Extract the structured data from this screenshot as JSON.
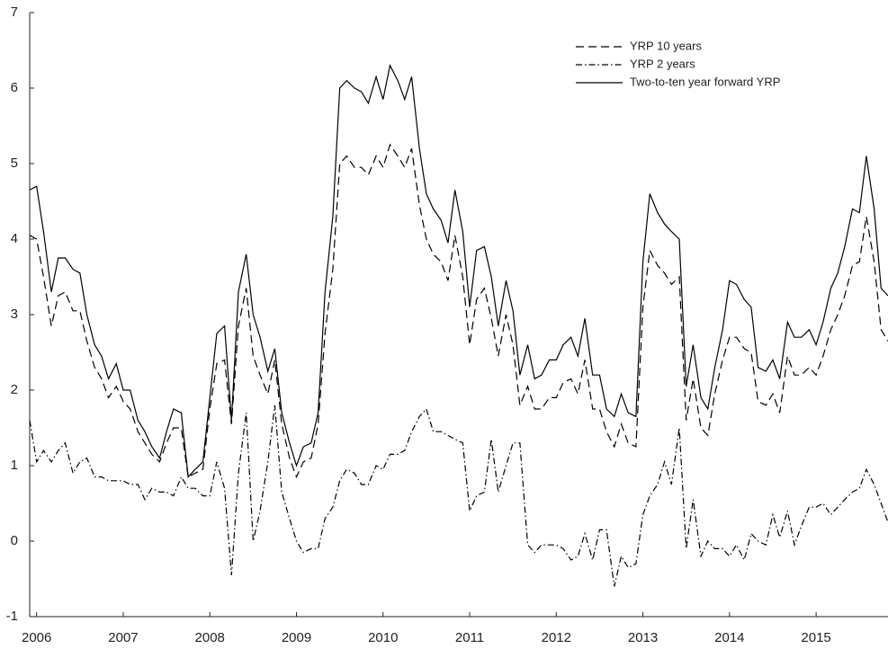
{
  "chart_data": {
    "type": "line",
    "x": [
      2005.92,
      2006.0,
      2006.08,
      2006.17,
      2006.25,
      2006.33,
      2006.42,
      2006.5,
      2006.58,
      2006.67,
      2006.75,
      2006.83,
      2006.92,
      2007.0,
      2007.08,
      2007.17,
      2007.25,
      2007.33,
      2007.42,
      2007.5,
      2007.58,
      2007.67,
      2007.75,
      2007.83,
      2007.92,
      2008.0,
      2008.08,
      2008.17,
      2008.25,
      2008.33,
      2008.42,
      2008.5,
      2008.58,
      2008.67,
      2008.75,
      2008.83,
      2008.92,
      2009.0,
      2009.08,
      2009.17,
      2009.25,
      2009.33,
      2009.42,
      2009.5,
      2009.58,
      2009.67,
      2009.75,
      2009.83,
      2009.92,
      2010.0,
      2010.08,
      2010.17,
      2010.25,
      2010.33,
      2010.42,
      2010.5,
      2010.58,
      2010.67,
      2010.75,
      2010.83,
      2010.92,
      2011.0,
      2011.08,
      2011.17,
      2011.25,
      2011.33,
      2011.42,
      2011.5,
      2011.58,
      2011.67,
      2011.75,
      2011.83,
      2011.92,
      2012.0,
      2012.08,
      2012.17,
      2012.25,
      2012.33,
      2012.42,
      2012.5,
      2012.58,
      2012.67,
      2012.75,
      2012.83,
      2012.92,
      2013.0,
      2013.08,
      2013.17,
      2013.25,
      2013.33,
      2013.42,
      2013.5,
      2013.58,
      2013.67,
      2013.75,
      2013.83,
      2013.92,
      2014.0,
      2014.08,
      2014.17,
      2014.25,
      2014.33,
      2014.42,
      2014.5,
      2014.58,
      2014.67,
      2014.75,
      2014.83,
      2014.92,
      2015.0,
      2015.08,
      2015.17,
      2015.25,
      2015.33,
      2015.42,
      2015.5,
      2015.58,
      2015.67,
      2015.75,
      2015.83
    ],
    "series": [
      {
        "name": "YRP 10 years",
        "color": "#000000",
        "style": "dashed",
        "values": [
          4.05,
          4.0,
          3.5,
          2.85,
          3.25,
          3.3,
          3.05,
          3.05,
          2.65,
          2.3,
          2.15,
          1.9,
          2.05,
          1.85,
          1.75,
          1.45,
          1.3,
          1.15,
          1.05,
          1.3,
          1.5,
          1.5,
          0.85,
          0.9,
          0.95,
          1.75,
          2.35,
          2.4,
          1.55,
          2.85,
          3.35,
          2.45,
          2.2,
          1.95,
          2.4,
          1.55,
          1.1,
          0.85,
          1.05,
          1.1,
          1.55,
          2.75,
          3.6,
          5.0,
          5.1,
          4.95,
          4.95,
          4.85,
          5.1,
          4.95,
          5.25,
          5.1,
          4.95,
          5.2,
          4.45,
          4.0,
          3.8,
          3.7,
          3.45,
          4.05,
          3.5,
          2.6,
          3.2,
          3.35,
          2.95,
          2.45,
          3.0,
          2.6,
          1.8,
          2.05,
          1.75,
          1.75,
          1.9,
          1.9,
          2.1,
          2.15,
          1.95,
          2.4,
          1.75,
          1.75,
          1.45,
          1.25,
          1.55,
          1.3,
          1.25,
          3.1,
          3.85,
          3.65,
          3.55,
          3.4,
          3.5,
          1.6,
          2.15,
          1.5,
          1.4,
          1.95,
          2.4,
          2.7,
          2.7,
          2.55,
          2.5,
          1.85,
          1.8,
          1.95,
          1.7,
          2.45,
          2.2,
          2.2,
          2.3,
          2.2,
          2.45,
          2.8,
          3.0,
          3.25,
          3.65,
          3.7,
          4.3,
          3.7,
          2.8,
          2.65
        ]
      },
      {
        "name": "YRP 2 years",
        "color": "#000000",
        "style": "dashdot",
        "values": [
          1.6,
          1.05,
          1.2,
          1.05,
          1.2,
          1.3,
          0.9,
          1.05,
          1.1,
          0.85,
          0.85,
          0.8,
          0.8,
          0.8,
          0.75,
          0.75,
          0.55,
          0.7,
          0.65,
          0.65,
          0.6,
          0.85,
          0.7,
          0.7,
          0.6,
          0.6,
          1.05,
          0.7,
          -0.45,
          0.9,
          1.7,
          0.0,
          0.4,
          1.05,
          1.8,
          0.65,
          0.3,
          0.0,
          -0.15,
          -0.1,
          -0.1,
          0.3,
          0.45,
          0.8,
          0.95,
          0.9,
          0.75,
          0.75,
          1.0,
          0.95,
          1.15,
          1.15,
          1.2,
          1.45,
          1.65,
          1.75,
          1.45,
          1.45,
          1.4,
          1.35,
          1.3,
          0.4,
          0.6,
          0.65,
          1.35,
          0.65,
          1.0,
          1.3,
          1.3,
          -0.05,
          -0.15,
          -0.05,
          -0.05,
          -0.05,
          -0.1,
          -0.25,
          -0.2,
          0.1,
          -0.25,
          0.15,
          0.15,
          -0.6,
          -0.2,
          -0.35,
          -0.3,
          0.35,
          0.6,
          0.75,
          1.05,
          0.75,
          1.5,
          -0.1,
          0.55,
          -0.2,
          0.0,
          -0.1,
          -0.1,
          -0.2,
          -0.05,
          -0.25,
          0.1,
          0.0,
          -0.05,
          0.35,
          0.05,
          0.4,
          -0.05,
          0.2,
          0.45,
          0.45,
          0.5,
          0.35,
          0.45,
          0.55,
          0.65,
          0.7,
          0.95,
          0.75,
          0.5,
          0.25
        ]
      },
      {
        "name": "Two-to-ten year forward YRP",
        "color": "#000000",
        "style": "solid",
        "values": [
          4.65,
          4.7,
          4.1,
          3.3,
          3.75,
          3.75,
          3.6,
          3.55,
          3.0,
          2.6,
          2.45,
          2.15,
          2.35,
          2.0,
          2.0,
          1.6,
          1.45,
          1.25,
          1.1,
          1.45,
          1.75,
          1.7,
          0.85,
          0.95,
          1.05,
          1.9,
          2.75,
          2.85,
          1.6,
          3.3,
          3.8,
          3.0,
          2.7,
          2.25,
          2.55,
          1.7,
          1.3,
          1.0,
          1.25,
          1.3,
          1.7,
          3.3,
          4.3,
          6.0,
          6.1,
          6.0,
          5.95,
          5.8,
          6.15,
          5.85,
          6.3,
          6.1,
          5.85,
          6.15,
          5.2,
          4.6,
          4.4,
          4.25,
          3.95,
          4.65,
          4.1,
          3.1,
          3.85,
          3.9,
          3.5,
          2.85,
          3.45,
          3.05,
          2.2,
          2.6,
          2.15,
          2.2,
          2.4,
          2.4,
          2.6,
          2.7,
          2.45,
          2.95,
          2.2,
          2.2,
          1.75,
          1.65,
          1.95,
          1.7,
          1.65,
          3.7,
          4.6,
          4.35,
          4.2,
          4.1,
          4.0,
          2.05,
          2.6,
          1.9,
          1.75,
          2.3,
          2.8,
          3.45,
          3.4,
          3.2,
          3.1,
          2.3,
          2.25,
          2.4,
          2.15,
          2.9,
          2.7,
          2.7,
          2.8,
          2.6,
          2.9,
          3.35,
          3.55,
          3.9,
          4.4,
          4.35,
          5.1,
          4.4,
          3.35,
          3.25
        ]
      }
    ],
    "xlim": [
      2005.92,
      2015.83
    ],
    "xticks": [
      2006,
      2007,
      2008,
      2009,
      2010,
      2011,
      2012,
      2013,
      2014,
      2015
    ],
    "ylim": [
      -1,
      7
    ],
    "yticks": [
      -1,
      0,
      1,
      2,
      3,
      4,
      5,
      6,
      7
    ],
    "legend": "upper right"
  }
}
